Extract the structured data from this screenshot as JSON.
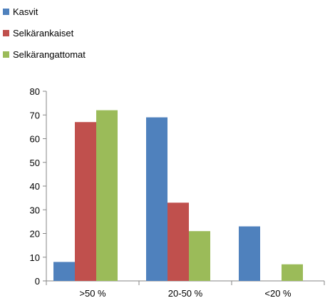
{
  "chart_data": {
    "type": "bar",
    "title": "",
    "xlabel": "",
    "ylabel": "",
    "categories": [
      ">50 %",
      "20-50 %",
      "<20 %"
    ],
    "ylim": [
      0,
      80
    ],
    "yticks": [
      0,
      10,
      20,
      30,
      40,
      50,
      60,
      70,
      80
    ],
    "grid": false,
    "legend_position": "top-left",
    "series": [
      {
        "name": "Kasvit",
        "color": "#4F81BD",
        "values": [
          8,
          69,
          23
        ]
      },
      {
        "name": "Selkärankaiset",
        "color": "#C0504D",
        "values": [
          67,
          33,
          0
        ]
      },
      {
        "name": "Selkärangattomat",
        "color": "#9BBB59",
        "values": [
          72,
          21,
          7
        ]
      }
    ]
  }
}
